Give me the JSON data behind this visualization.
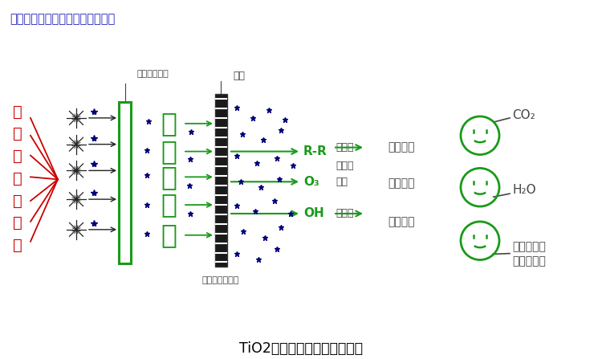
{
  "title_top": "以下为光氧催化的分解反应示意图",
  "title_bottom": "TiO2光解催化氧化工艺原理图",
  "left_label_chars": [
    "有",
    "机",
    "或",
    "恶",
    "臭",
    "废",
    "气"
  ],
  "lamp_label": "高能紫外灯管",
  "water_label": "水汽",
  "nano_label": "纳米级二氧化钛",
  "uv_text": [
    "高",
    "能",
    "紫",
    "外",
    "线"
  ],
  "reaction_labels": [
    "R-R",
    "O₃",
    "OH"
  ],
  "desc_line1": "键断裂",
  "desc_line2": "游离氧",
  "desc_line3": "羟基",
  "desc_line4": "自由基",
  "right_label1": "分解有机",
  "right_label2": "恶臭气体",
  "right_label3": "杀菌消毒",
  "prod1": "CO₂",
  "prod2": "H₂O",
  "prod3_l1": "低分子无臭",
  "prod3_l2": "无害化合物",
  "bg_color": "#ffffff",
  "green": "#1a9a1a",
  "red": "#cc0000",
  "dark_gray": "#444444",
  "title_color": "#2222bb",
  "panel_color": "#1a1a1a",
  "blue_star": "#000077"
}
